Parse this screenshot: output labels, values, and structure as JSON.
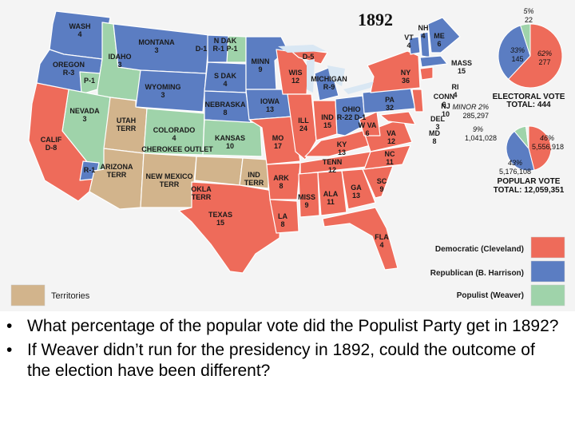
{
  "title": "1892",
  "states": {
    "WA": [
      "WASH",
      "4"
    ],
    "OR": [
      "OREGON",
      "R-3"
    ],
    "OR2": [
      "P-1",
      ""
    ],
    "CA": [
      "CALIF",
      "D-8"
    ],
    "CA2": [
      "R-1",
      ""
    ],
    "NV": [
      "NEVADA",
      "3"
    ],
    "ID": [
      "IDAHO",
      "3"
    ],
    "MT": [
      "MONTANA",
      "3"
    ],
    "WY": [
      "WYOMING",
      "3"
    ],
    "UT": [
      "UTAH",
      "TERR"
    ],
    "AZ": [
      "ARIZONA",
      "TERR"
    ],
    "CO": [
      "COLORADO",
      "4"
    ],
    "NM": [
      "NEW MEXICO",
      "TERR"
    ],
    "ND": [
      "N DAK",
      "R-1 P-1"
    ],
    "ND2": [
      "D-1",
      ""
    ],
    "SD": [
      "S DAK",
      "4"
    ],
    "NE": [
      "NEBRASKA",
      "8"
    ],
    "KS": [
      "KANSAS",
      "10"
    ],
    "CHK": [
      "CHEROKEE OUTLET",
      ""
    ],
    "OK": [
      "OKLA",
      "TERR"
    ],
    "IT": [
      "IND",
      "TERR"
    ],
    "TX": [
      "TEXAS",
      "15"
    ],
    "MN": [
      "MINN",
      "9"
    ],
    "IA": [
      "IOWA",
      "13"
    ],
    "MO": [
      "MO",
      "17"
    ],
    "AR": [
      "ARK",
      "8"
    ],
    "LA": [
      "LA",
      "8"
    ],
    "WI": [
      "WIS",
      "12"
    ],
    "MI": [
      "MICHIGAN",
      "R-9"
    ],
    "MI2": [
      "D-5",
      ""
    ],
    "IL": [
      "ILL",
      "24"
    ],
    "IN": [
      "IND",
      "15"
    ],
    "OH": [
      "OHIO",
      "R-22 D-1"
    ],
    "KY": [
      "KY",
      "13"
    ],
    "TN": [
      "TENN",
      "12"
    ],
    "MS": [
      "MISS",
      "9"
    ],
    "AL": [
      "ALA",
      "11"
    ],
    "GA": [
      "GA",
      "13"
    ],
    "FL": [
      "FLA",
      "4"
    ],
    "SC": [
      "SC",
      "9"
    ],
    "NC": [
      "NC",
      "11"
    ],
    "VA": [
      "VA",
      "12"
    ],
    "WV": [
      "W VA",
      "6"
    ],
    "PA": [
      "PA",
      "32"
    ],
    "NY": [
      "NY",
      "36"
    ],
    "VT": [
      "VT",
      "4"
    ],
    "NH": [
      "NH",
      "4"
    ],
    "ME": [
      "ME",
      "6"
    ],
    "MA": [
      "MASS",
      "15"
    ],
    "RI": [
      "RI",
      "4"
    ],
    "CT": [
      "CONN",
      "6"
    ],
    "NJ": [
      "NJ",
      "10"
    ],
    "DE": [
      "DEL",
      "3"
    ],
    "MD": [
      "MD",
      "8"
    ]
  },
  "electoral_vote": {
    "heading": "ELECTORAL VOTE",
    "total": "TOTAL: 444",
    "populist_pct": "5%",
    "populist_num": "22",
    "republican_pct": "33%",
    "republican_num": "145",
    "democratic_pct": "62%",
    "democratic_num": "277",
    "shares": {
      "democratic": 0.62,
      "republican": 0.33,
      "populist": 0.05
    }
  },
  "popular_vote": {
    "heading": "POPULAR VOTE",
    "total": "TOTAL: 12,059,351",
    "minor_label": "MINOR 2%",
    "minor_num": "285,297",
    "populist_pct": "9%",
    "populist_num": "1,041,028",
    "republican_pct": "43%",
    "republican_num": "5,176,108",
    "democratic_pct": "46%",
    "democratic_num": "5,556,918",
    "shares": {
      "democratic": 0.46,
      "republican": 0.43,
      "populist": 0.09,
      "minor": 0.02
    }
  },
  "legend": {
    "democratic": "Democratic (Cleveland)",
    "republican": "Republican (B. Harrison)",
    "populist": "Populist (Weaver)",
    "territories": "Territories"
  },
  "colors": {
    "democratic": "#ee6b5a",
    "republican": "#5b7dc2",
    "populist": "#9fd3aa",
    "territory": "#d2b48c",
    "minor": "#f2f2f2"
  },
  "bullets": [
    "What percentage of the popular vote did the Populist Party get in 1892?",
    "If Weaver didn’t run for the presidency in 1892, could the outcome of the election have been different?"
  ]
}
